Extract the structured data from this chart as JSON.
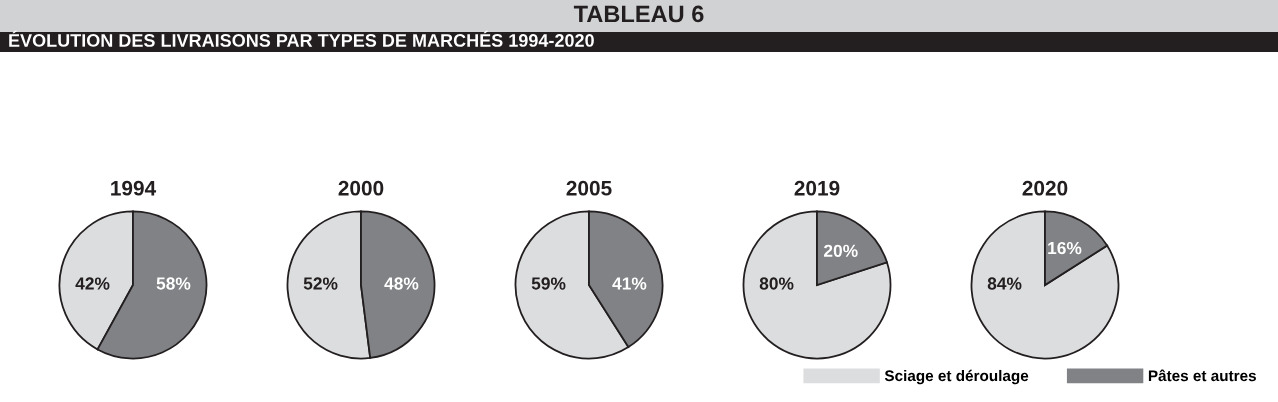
{
  "chart_data": [
    {
      "type": "pie",
      "title": "1994",
      "annotations": [
        "TABLEAU 6",
        "ÉVOLUTION DES LIVRAISONS PAR TYPES DE MARCHÉS 1994-2020"
      ],
      "values": [
        42,
        58
      ],
      "colors": [
        "#dcdddf",
        "#808285"
      ],
      "value_labels": [
        "42%",
        "58%"
      ],
      "legend": false
    },
    {
      "type": "pie",
      "title": "2000",
      "values": [
        52,
        48
      ],
      "colors": [
        "#dcdddf",
        "#808285"
      ],
      "value_labels": [
        "52%",
        "48%"
      ],
      "legend": false
    },
    {
      "type": "pie",
      "title": "2005",
      "values": [
        59,
        41
      ],
      "colors": [
        "#dcdddf",
        "#808285"
      ],
      "value_labels": [
        "59%",
        "41%"
      ],
      "legend": false
    },
    {
      "type": "pie",
      "title": "2019",
      "values": [
        80,
        20
      ],
      "colors": [
        "#dcdddf",
        "#808285"
      ],
      "value_labels": [
        "80%",
        "20%"
      ],
      "legend": false
    },
    {
      "type": "pie",
      "title": "2020",
      "categories": [
        "Sciage et déroulage",
        "Pâtes et autres"
      ],
      "values": [
        84,
        16
      ],
      "colors": [
        "#dcdddf",
        "#808285"
      ],
      "value_labels": [
        "84%",
        "16%"
      ],
      "legend": "bottom"
    }
  ]
}
